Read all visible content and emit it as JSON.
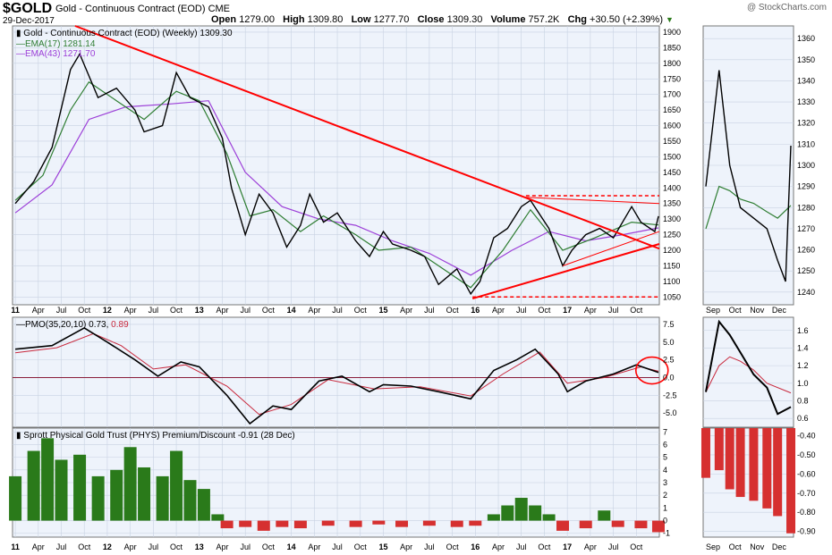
{
  "header": {
    "ticker": "$GOLD",
    "name": "Gold - Continuous Contract (EOD)",
    "exchange": "CME",
    "date": "29-Dec-2017",
    "open_label": "Open",
    "open": "1279.00",
    "high_label": "High",
    "high": "1309.80",
    "low_label": "Low",
    "low": "1277.70",
    "close_label": "Close",
    "close": "1309.30",
    "volume_label": "Volume",
    "volume": "757.2K",
    "chg_label": "Chg",
    "chg": "+30.50 (+2.39%)",
    "watermark": "@ StockCharts.com"
  },
  "legend": {
    "price": "Gold - Continuous Contract (EOD) (Weekly) 1309.30",
    "ema17": "EMA(17) 1281.14",
    "ema43": "EMA(43) 1271.70",
    "pmo_prefix": "PMO(35,20,10) 0.73,",
    "pmo_signal": "0.89",
    "phys": "Sprott Physical Gold Trust (PHYS) Premium/Discount -0.91 (28 Dec)"
  },
  "colors": {
    "price": "#000000",
    "ema17": "#2e7d32",
    "ema43": "#9c3fd8",
    "trendline": "#ff0000",
    "pmo": "#000000",
    "pmo_signal": "#c8283c",
    "positive_bar": "#2a7a1a",
    "negative_bar": "#d63030",
    "panel_bg": "#eef3fb",
    "grid": "#c8d2e2"
  },
  "chart_data": [
    {
      "type": "line",
      "title": "Gold - Continuous Contract (EOD) (Weekly)",
      "series": [
        {
          "name": "Gold - Continuous Contract (EOD) (Weekly)",
          "values": [
            [
              2011.0,
              1350
            ],
            [
              2011.2,
              1420
            ],
            [
              2011.4,
              1530
            ],
            [
              2011.6,
              1780
            ],
            [
              2011.7,
              1830
            ],
            [
              2011.9,
              1690
            ],
            [
              2012.1,
              1720
            ],
            [
              2012.3,
              1650
            ],
            [
              2012.4,
              1580
            ],
            [
              2012.6,
              1600
            ],
            [
              2012.75,
              1770
            ],
            [
              2012.9,
              1690
            ],
            [
              2013.1,
              1660
            ],
            [
              2013.25,
              1560
            ],
            [
              2013.35,
              1400
            ],
            [
              2013.5,
              1250
            ],
            [
              2013.65,
              1380
            ],
            [
              2013.8,
              1320
            ],
            [
              2013.95,
              1210
            ],
            [
              2014.1,
              1280
            ],
            [
              2014.2,
              1380
            ],
            [
              2014.35,
              1290
            ],
            [
              2014.5,
              1320
            ],
            [
              2014.7,
              1230
            ],
            [
              2014.85,
              1180
            ],
            [
              2015.0,
              1260
            ],
            [
              2015.1,
              1220
            ],
            [
              2015.3,
              1200
            ],
            [
              2015.45,
              1180
            ],
            [
              2015.6,
              1090
            ],
            [
              2015.8,
              1140
            ],
            [
              2015.95,
              1060
            ],
            [
              2016.05,
              1100
            ],
            [
              2016.2,
              1240
            ],
            [
              2016.35,
              1270
            ],
            [
              2016.5,
              1340
            ],
            [
              2016.6,
              1360
            ],
            [
              2016.8,
              1270
            ],
            [
              2016.95,
              1150
            ],
            [
              2017.05,
              1200
            ],
            [
              2017.2,
              1250
            ],
            [
              2017.35,
              1270
            ],
            [
              2017.5,
              1240
            ],
            [
              2017.7,
              1340
            ],
            [
              2017.8,
              1290
            ],
            [
              2017.95,
              1260
            ],
            [
              2017.99,
              1309.3
            ]
          ]
        },
        {
          "name": "EMA(17)",
          "values": [
            [
              2011.0,
              1360
            ],
            [
              2011.3,
              1440
            ],
            [
              2011.6,
              1650
            ],
            [
              2011.8,
              1740
            ],
            [
              2012.1,
              1680
            ],
            [
              2012.4,
              1620
            ],
            [
              2012.75,
              1710
            ],
            [
              2013.0,
              1680
            ],
            [
              2013.3,
              1510
            ],
            [
              2013.55,
              1310
            ],
            [
              2013.8,
              1330
            ],
            [
              2014.1,
              1260
            ],
            [
              2014.35,
              1310
            ],
            [
              2014.7,
              1250
            ],
            [
              2014.95,
              1200
            ],
            [
              2015.3,
              1210
            ],
            [
              2015.6,
              1150
            ],
            [
              2015.95,
              1080
            ],
            [
              2016.3,
              1200
            ],
            [
              2016.6,
              1330
            ],
            [
              2016.95,
              1200
            ],
            [
              2017.3,
              1240
            ],
            [
              2017.7,
              1290
            ],
            [
              2017.99,
              1281.14
            ]
          ]
        },
        {
          "name": "EMA(43)",
          "values": [
            [
              2011.0,
              1320
            ],
            [
              2011.4,
              1410
            ],
            [
              2011.8,
              1620
            ],
            [
              2012.2,
              1660
            ],
            [
              2012.7,
              1670
            ],
            [
              2013.1,
              1680
            ],
            [
              2013.5,
              1450
            ],
            [
              2013.9,
              1340
            ],
            [
              2014.3,
              1300
            ],
            [
              2014.7,
              1280
            ],
            [
              2015.1,
              1230
            ],
            [
              2015.5,
              1190
            ],
            [
              2015.95,
              1120
            ],
            [
              2016.4,
              1200
            ],
            [
              2016.8,
              1260
            ],
            [
              2017.2,
              1230
            ],
            [
              2017.6,
              1250
            ],
            [
              2017.99,
              1271.7
            ]
          ]
        }
      ],
      "x_ticks": [
        "11",
        "Apr",
        "Jul",
        "Oct",
        "12",
        "Apr",
        "Jul",
        "Oct",
        "13",
        "Apr",
        "Jul",
        "Oct",
        "14",
        "Apr",
        "Jul",
        "Oct",
        "15",
        "Apr",
        "Jul",
        "Oct",
        "16",
        "Apr",
        "Jul",
        "Oct",
        "17",
        "Apr",
        "Jul",
        "Oct"
      ],
      "y_ticks": [
        1050,
        1100,
        1150,
        1200,
        1250,
        1300,
        1350,
        1400,
        1450,
        1500,
        1550,
        1600,
        1650,
        1700,
        1750,
        1800,
        1850,
        1900
      ],
      "ylim": [
        1025,
        1920
      ]
    },
    {
      "type": "line",
      "series": [
        {
          "name": "Gold (Daily)",
          "values": [
            [
              2017.67,
              1290
            ],
            [
              2017.72,
              1345
            ],
            [
              2017.76,
              1300
            ],
            [
              2017.8,
              1280
            ],
            [
              2017.85,
              1275
            ],
            [
              2017.9,
              1270
            ],
            [
              2017.94,
              1255
            ],
            [
              2017.97,
              1245
            ],
            [
              2017.99,
              1309.3
            ]
          ]
        },
        {
          "name": "EMA(17)",
          "values": [
            [
              2017.67,
              1270
            ],
            [
              2017.72,
              1290
            ],
            [
              2017.76,
              1288
            ],
            [
              2017.8,
              1284
            ],
            [
              2017.85,
              1282
            ],
            [
              2017.9,
              1278
            ],
            [
              2017.94,
              1275
            ],
            [
              2017.99,
              1281
            ]
          ]
        }
      ],
      "x_ticks": [
        "Sep",
        "Oct",
        "Nov",
        "Dec"
      ],
      "y_ticks": [
        1240,
        1250,
        1260,
        1270,
        1280,
        1290,
        1300,
        1310,
        1320,
        1330,
        1340,
        1350,
        1360
      ],
      "ylim": [
        1234,
        1366
      ]
    },
    {
      "type": "line",
      "series": [
        {
          "name": "PMO(35,20,10)",
          "values": [
            [
              2011.0,
              4.0
            ],
            [
              2011.4,
              4.5
            ],
            [
              2011.75,
              7.0
            ],
            [
              2012.0,
              5.0
            ],
            [
              2012.3,
              2.5
            ],
            [
              2012.55,
              0.2
            ],
            [
              2012.8,
              2.2
            ],
            [
              2013.0,
              1.5
            ],
            [
              2013.3,
              -2.5
            ],
            [
              2013.55,
              -6.5
            ],
            [
              2013.8,
              -4.0
            ],
            [
              2014.0,
              -4.5
            ],
            [
              2014.3,
              -0.5
            ],
            [
              2014.55,
              0.2
            ],
            [
              2014.85,
              -2.0
            ],
            [
              2015.0,
              -1.0
            ],
            [
              2015.3,
              -1.2
            ],
            [
              2015.6,
              -2.0
            ],
            [
              2015.95,
              -3.0
            ],
            [
              2016.2,
              1.0
            ],
            [
              2016.45,
              2.5
            ],
            [
              2016.65,
              4.0
            ],
            [
              2016.9,
              0.5
            ],
            [
              2017.0,
              -2.0
            ],
            [
              2017.2,
              -0.5
            ],
            [
              2017.5,
              0.5
            ],
            [
              2017.75,
              1.8
            ],
            [
              2017.99,
              0.73
            ]
          ]
        },
        {
          "name": "Signal",
          "values": [
            [
              2011.0,
              3.5
            ],
            [
              2011.45,
              4.2
            ],
            [
              2011.85,
              6.2
            ],
            [
              2012.15,
              4.5
            ],
            [
              2012.5,
              1.2
            ],
            [
              2012.85,
              1.8
            ],
            [
              2013.3,
              -1.2
            ],
            [
              2013.65,
              -5.2
            ],
            [
              2014.0,
              -3.8
            ],
            [
              2014.4,
              -0.3
            ],
            [
              2014.9,
              -1.6
            ],
            [
              2015.4,
              -1.3
            ],
            [
              2015.95,
              -2.6
            ],
            [
              2016.3,
              0.5
            ],
            [
              2016.7,
              3.6
            ],
            [
              2017.0,
              -0.8
            ],
            [
              2017.4,
              0.0
            ],
            [
              2017.8,
              1.5
            ],
            [
              2017.99,
              0.89
            ]
          ]
        }
      ],
      "y_ticks": [
        -5.0,
        -2.5,
        0.0,
        2.5,
        5.0,
        7.5
      ],
      "ylim": [
        -7,
        8.5
      ]
    },
    {
      "type": "line",
      "series": [
        {
          "name": "PMO (Daily)",
          "values": [
            [
              2017.67,
              0.9
            ],
            [
              2017.72,
              1.7
            ],
            [
              2017.76,
              1.55
            ],
            [
              2017.8,
              1.35
            ],
            [
              2017.85,
              1.1
            ],
            [
              2017.9,
              0.95
            ],
            [
              2017.94,
              0.65
            ],
            [
              2017.99,
              0.73
            ]
          ]
        },
        {
          "name": "Signal (Daily)",
          "values": [
            [
              2017.67,
              0.9
            ],
            [
              2017.72,
              1.2
            ],
            [
              2017.76,
              1.3
            ],
            [
              2017.8,
              1.25
            ],
            [
              2017.85,
              1.15
            ],
            [
              2017.9,
              1.0
            ],
            [
              2017.99,
              0.89
            ]
          ]
        }
      ],
      "y_ticks": [
        0.6,
        0.8,
        1.0,
        1.2,
        1.4,
        1.6
      ],
      "ylim": [
        0.5,
        1.75
      ]
    },
    {
      "type": "bar",
      "title": "Sprott Physical Gold Trust (PHYS) Premium/Discount",
      "series": [
        {
          "name": "Sprott Physical Gold Trust (PHYS) Premium/Discount",
          "values": [
            [
              2011.0,
              3.5
            ],
            [
              2011.2,
              5.5
            ],
            [
              2011.35,
              6.5
            ],
            [
              2011.5,
              4.8
            ],
            [
              2011.7,
              5.2
            ],
            [
              2011.9,
              3.5
            ],
            [
              2012.1,
              4.0
            ],
            [
              2012.25,
              5.8
            ],
            [
              2012.4,
              4.2
            ],
            [
              2012.6,
              3.5
            ],
            [
              2012.75,
              5.5
            ],
            [
              2012.9,
              3.2
            ],
            [
              2013.05,
              2.5
            ],
            [
              2013.2,
              0.5
            ],
            [
              2013.3,
              -0.6
            ],
            [
              2013.5,
              -0.5
            ],
            [
              2013.7,
              -0.8
            ],
            [
              2013.9,
              -0.5
            ],
            [
              2014.1,
              -0.6
            ],
            [
              2014.4,
              -0.4
            ],
            [
              2014.7,
              -0.5
            ],
            [
              2014.95,
              -0.3
            ],
            [
              2015.2,
              -0.5
            ],
            [
              2015.5,
              -0.4
            ],
            [
              2015.8,
              -0.5
            ],
            [
              2016.0,
              -0.4
            ],
            [
              2016.2,
              0.5
            ],
            [
              2016.35,
              1.2
            ],
            [
              2016.5,
              1.8
            ],
            [
              2016.65,
              1.2
            ],
            [
              2016.8,
              0.5
            ],
            [
              2016.95,
              -0.8
            ],
            [
              2017.2,
              -0.6
            ],
            [
              2017.4,
              0.8
            ],
            [
              2017.55,
              -0.5
            ],
            [
              2017.8,
              -0.6
            ],
            [
              2017.99,
              -0.91
            ]
          ]
        }
      ],
      "y_ticks": [
        -1,
        0,
        1,
        2,
        3,
        4,
        5,
        6,
        7
      ],
      "ylim": [
        -1.3,
        7.3
      ]
    },
    {
      "type": "bar",
      "series": [
        {
          "name": "PHYS Premium/Discount (Daily)",
          "values": [
            [
              2017.67,
              -0.62
            ],
            [
              2017.72,
              -0.58
            ],
            [
              2017.76,
              -0.68
            ],
            [
              2017.8,
              -0.72
            ],
            [
              2017.85,
              -0.74
            ],
            [
              2017.9,
              -0.78
            ],
            [
              2017.94,
              -0.82
            ],
            [
              2017.99,
              -0.91
            ]
          ]
        }
      ],
      "y_ticks": [
        -0.9,
        -0.8,
        -0.7,
        -0.6,
        -0.5,
        -0.4
      ],
      "ylim": [
        -0.93,
        -0.36
      ]
    }
  ]
}
